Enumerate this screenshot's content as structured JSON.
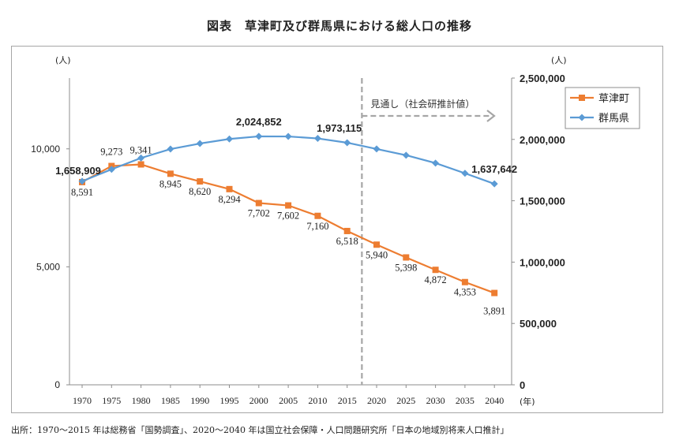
{
  "title": "図表　草津町及び群馬県における総人口の推移",
  "source": "出所：1970〜2015 年は総務省「国勢調査」、2020〜2040 年は国立社会保障・人口問題研究所「日本の地域別将来人口推計」",
  "chart_data": {
    "type": "line",
    "x": [
      1970,
      1975,
      1980,
      1985,
      1990,
      1995,
      2000,
      2005,
      2010,
      2015,
      2020,
      2025,
      2030,
      2035,
      2040
    ],
    "x_tick_labels": [
      "1970",
      "1975",
      "1980",
      "1985",
      "1990",
      "1995",
      "2000",
      "2005",
      "2010",
      "2015",
      "2020",
      "2025",
      "2030",
      "2035",
      "2040"
    ],
    "xunit": "(年)",
    "left_axis": {
      "unit": "(人)",
      "range": [
        0,
        13000
      ],
      "ticks": [
        0,
        5000,
        10000
      ],
      "tick_labels": [
        "0",
        "5,000",
        "10,000"
      ]
    },
    "right_axis": {
      "unit": "(人)",
      "range": [
        0,
        2500000
      ],
      "ticks": [
        0,
        500000,
        1000000,
        1500000,
        2000000,
        2500000
      ],
      "tick_labels": [
        "0",
        "500,000",
        "1,000,000",
        "1,500,000",
        "2,000,000",
        "2,500,000"
      ]
    },
    "series": [
      {
        "name": "草津町",
        "axis": "left",
        "color": "#ed7d31",
        "marker": "square",
        "values": [
          8591,
          9273,
          9341,
          8945,
          8620,
          8294,
          7702,
          7602,
          7160,
          6518,
          5940,
          5398,
          4872,
          4353,
          3891
        ],
        "labels": [
          "8,591",
          "9,273",
          "9,341",
          "8,945",
          "8,620",
          "8,294",
          "7,702",
          "7,602",
          "7,160",
          "6,518",
          "5,940",
          "5,398",
          "4,872",
          "4,353",
          "3,891"
        ]
      },
      {
        "name": "群馬県",
        "axis": "right",
        "color": "#5b9bd5",
        "marker": "diamond",
        "values": [
          1658909,
          1756480,
          1848562,
          1921259,
          1966265,
          2003540,
          2024852,
          2024135,
          2008068,
          1973115,
          1922000,
          1871000,
          1807000,
          1724000,
          1637642
        ],
        "labels": [
          "1,658,909",
          "",
          "",
          "",
          "",
          "",
          "2,024,852",
          "",
          "",
          "1,973,115",
          "",
          "",
          "",
          "",
          "1,637,642"
        ]
      }
    ],
    "projection": {
      "start_x": 2017.5,
      "label": "見通し（社会研推計値）"
    },
    "legend_position": "top-right",
    "grid": false
  }
}
